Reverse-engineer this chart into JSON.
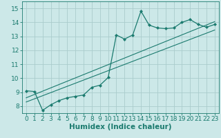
{
  "xlabel": "Humidex (Indice chaleur)",
  "bg_color": "#cce8e8",
  "grid_color": "#aacccc",
  "line_color": "#1a7a6e",
  "xlim": [
    -0.5,
    23.5
  ],
  "ylim": [
    7.5,
    15.5
  ],
  "xticks": [
    0,
    1,
    2,
    3,
    4,
    5,
    6,
    7,
    8,
    9,
    10,
    11,
    12,
    13,
    14,
    15,
    16,
    17,
    18,
    19,
    20,
    21,
    22,
    23
  ],
  "yticks": [
    8,
    9,
    10,
    11,
    12,
    13,
    14,
    15
  ],
  "curve_x": [
    0,
    1,
    2,
    3,
    4,
    5,
    6,
    7,
    8,
    9,
    10,
    11,
    12,
    13,
    14,
    15,
    16,
    17,
    18,
    19,
    20,
    21,
    22,
    23
  ],
  "curve_y": [
    9.1,
    9.05,
    7.7,
    8.1,
    8.4,
    8.6,
    8.7,
    8.8,
    9.35,
    9.5,
    10.05,
    13.1,
    12.8,
    13.1,
    14.8,
    13.8,
    13.6,
    13.55,
    13.6,
    14.0,
    14.2,
    13.85,
    13.65,
    13.85
  ],
  "line1_x": [
    0,
    23
  ],
  "line1_y": [
    8.6,
    14.05
  ],
  "line2_x": [
    0,
    23
  ],
  "line2_y": [
    8.3,
    13.45
  ],
  "tick_fontsize": 6.5,
  "xlabel_fontsize": 7.5
}
